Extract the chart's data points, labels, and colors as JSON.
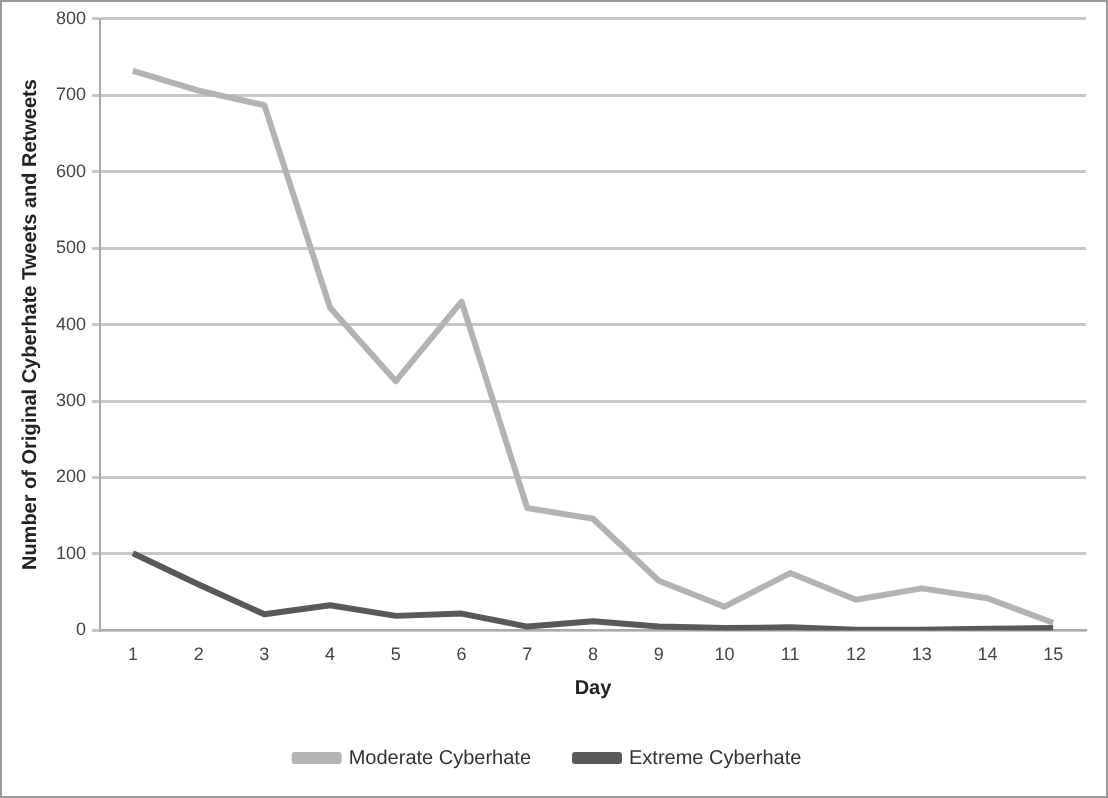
{
  "chart_data": {
    "type": "line",
    "xlabel": "Day",
    "ylabel": "Number of Original Cyberhate Tweets and Retweets",
    "x": [
      1,
      2,
      3,
      4,
      5,
      6,
      7,
      8,
      9,
      10,
      11,
      12,
      13,
      14,
      15
    ],
    "series": [
      {
        "name": "Moderate Cyberhate",
        "color": "#b3b3b3",
        "values": [
          732,
          706,
          687,
          422,
          326,
          430,
          160,
          146,
          65,
          31,
          75,
          40,
          55,
          42,
          10
        ]
      },
      {
        "name": "Extreme Cyberhate",
        "color": "#595959",
        "values": [
          101,
          60,
          21,
          33,
          19,
          22,
          5,
          12,
          5,
          3,
          4,
          1,
          1,
          2,
          3
        ]
      }
    ],
    "xlim": [
      0.5,
      15.5
    ],
    "xticks": [
      1,
      2,
      3,
      4,
      5,
      6,
      7,
      8,
      9,
      10,
      11,
      12,
      13,
      14,
      15
    ],
    "ylim": [
      0,
      800
    ],
    "yticks": [
      0,
      100,
      200,
      300,
      400,
      500,
      600,
      700,
      800
    ],
    "grid": "y",
    "legend": "bottom",
    "marker": "none",
    "line_style": "solid"
  }
}
